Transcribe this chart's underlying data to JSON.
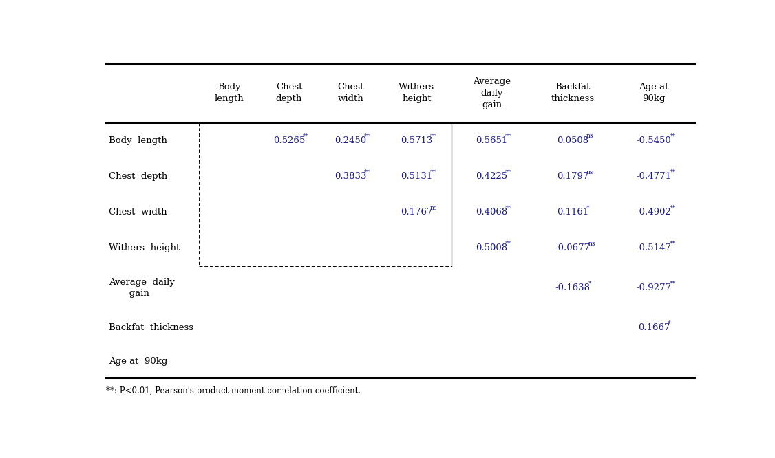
{
  "col_headers": [
    [
      "Body",
      "length"
    ],
    [
      "Chest",
      "depth"
    ],
    [
      "Chest",
      "width"
    ],
    [
      "Withers",
      "height"
    ],
    [
      "Average",
      "daily",
      "gain"
    ],
    [
      "Backfat",
      "thickness"
    ],
    [
      "Age at",
      "90kg"
    ]
  ],
  "row_headers": [
    "Body  length",
    "Chest  depth",
    "Chest  width",
    "Withers  height",
    "Average  daily\n       gain",
    "Backfat  thickness",
    "Age at  90kg"
  ],
  "cells": [
    [
      "",
      "0.5265**",
      "0.2450**",
      "0.5713**",
      "0.5651**",
      "0.0508ns",
      "-0.5450**"
    ],
    [
      "",
      "",
      "0.3833**",
      "0.5131**",
      "0.4225**",
      "0.1797ns",
      "-0.4771**"
    ],
    [
      "",
      "",
      "",
      "0.1767ns",
      "0.4068**",
      "0.1161*",
      "-0.4902**"
    ],
    [
      "",
      "",
      "",
      "",
      "0.5008**",
      "-0.0677ns",
      "-0.5147**"
    ],
    [
      "",
      "",
      "",
      "",
      "",
      "-0.1638*",
      "-0.9277**"
    ],
    [
      "",
      "",
      "",
      "",
      "",
      "",
      "0.1667*"
    ],
    [
      "",
      "",
      "",
      "",
      "",
      "",
      ""
    ]
  ],
  "footnote": "**: P<0.01, Pearson's product moment correlation coefficient.",
  "text_color": "#1a1a8c",
  "header_color": "#000000",
  "bg_color": "#ffffff"
}
